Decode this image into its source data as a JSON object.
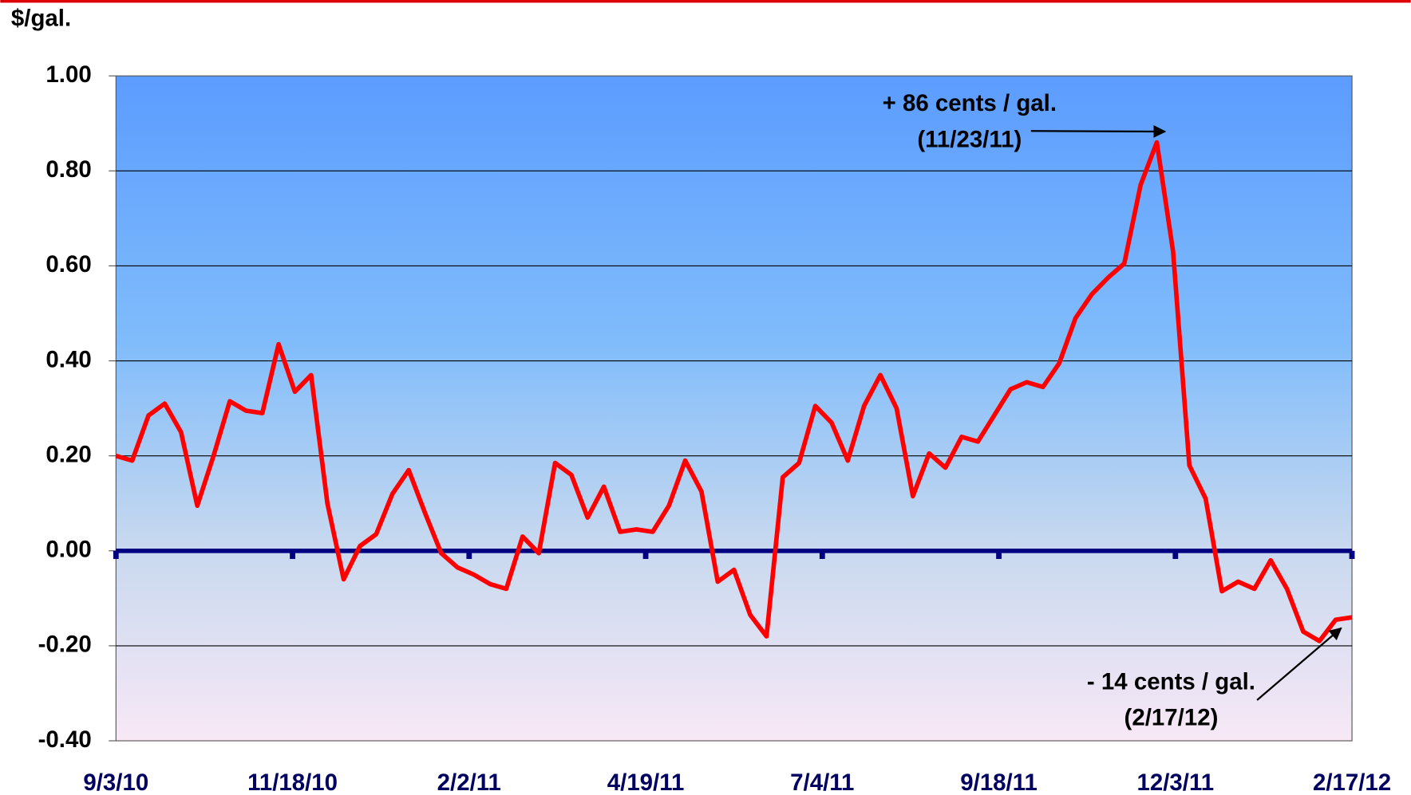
{
  "chart_data": {
    "type": "line",
    "y_axis_label": "$/gal.",
    "values": [
      0.2,
      0.19,
      0.285,
      0.31,
      0.25,
      0.095,
      0.2,
      0.315,
      0.295,
      0.29,
      0.435,
      0.335,
      0.37,
      0.1,
      -0.06,
      0.01,
      0.035,
      0.12,
      0.17,
      0.08,
      -0.005,
      -0.035,
      -0.05,
      -0.07,
      -0.08,
      0.03,
      -0.005,
      0.185,
      0.16,
      0.07,
      0.135,
      0.04,
      0.045,
      0.04,
      0.095,
      0.19,
      0.125,
      -0.065,
      -0.04,
      -0.135,
      -0.18,
      0.155,
      0.185,
      0.305,
      0.27,
      0.19,
      0.305,
      0.37,
      0.3,
      0.115,
      0.205,
      0.175,
      0.24,
      0.23,
      0.285,
      0.34,
      0.355,
      0.345,
      0.395,
      0.49,
      0.54,
      0.575,
      0.605,
      0.77,
      0.86,
      0.63,
      0.18,
      0.11,
      -0.085,
      -0.065,
      -0.08,
      -0.02,
      -0.08,
      -0.17,
      -0.19,
      -0.145,
      -0.14
    ],
    "color": "#ff0000",
    "xtick_labels": [
      "9/3/10",
      "11/18/10",
      "2/2/11",
      "4/19/11",
      "7/4/11",
      "9/18/11",
      "12/3/11",
      "2/17/12"
    ],
    "ylim": [
      -0.4,
      1.0
    ],
    "yticks": [
      {
        "value": -0.4,
        "label": "-0.40"
      },
      {
        "value": -0.2,
        "label": "-0.20"
      },
      {
        "value": 0,
        "label": "0.00"
      },
      {
        "value": 0.2,
        "label": "0.20"
      },
      {
        "value": 0.4,
        "label": "0.40"
      },
      {
        "value": 0.6,
        "label": "0.60"
      },
      {
        "value": 0.8,
        "label": "0.80"
      },
      {
        "value": 1.0,
        "label": "1.00"
      }
    ],
    "grid": true,
    "annotations": [
      {
        "lines": [
          "+ 86 cents / gal.",
          "(11/23/11)"
        ],
        "point": 64
      },
      {
        "lines": [
          "- 14 cents / gal.",
          "(2/17/12)"
        ],
        "point": 76
      }
    ]
  }
}
